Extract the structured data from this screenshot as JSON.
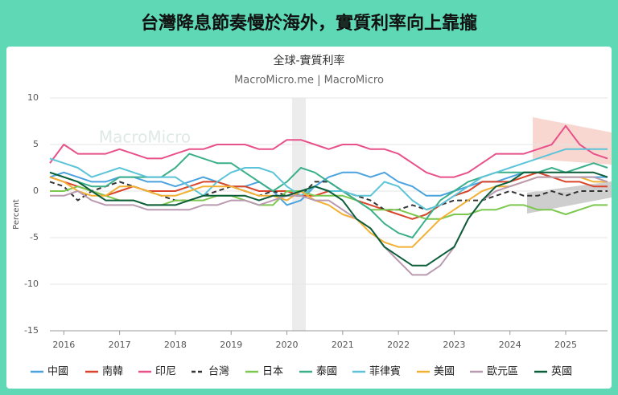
{
  "header": {
    "title": "台灣降息節奏慢於海外，實質利率向上靠攏"
  },
  "chart_data": {
    "type": "line",
    "title": "全球-實質利率",
    "subtitle": "MacroMicro.me | MacroMicro",
    "watermark": "MacroMicro",
    "y_label": "Percent",
    "x": [
      2015.75,
      2016,
      2016.25,
      2016.5,
      2016.75,
      2017,
      2017.25,
      2017.5,
      2017.75,
      2018,
      2018.25,
      2018.5,
      2018.75,
      2019,
      2019.25,
      2019.5,
      2019.75,
      2020,
      2020.25,
      2020.5,
      2020.75,
      2021,
      2021.25,
      2021.5,
      2021.75,
      2022,
      2022.25,
      2022.5,
      2022.75,
      2023,
      2023.25,
      2023.5,
      2023.75,
      2024,
      2024.25,
      2024.5,
      2024.75,
      2025,
      2025.25,
      2025.5,
      2025.75
    ],
    "xlim": [
      2015.75,
      2025.75
    ],
    "xticks": [
      2016,
      2017,
      2018,
      2019,
      2020,
      2021,
      2022,
      2023,
      2024,
      2025
    ],
    "ylim": [
      -15,
      10
    ],
    "yticks": [
      10,
      5,
      0,
      -5,
      -10,
      -15
    ],
    "grid": true,
    "series": [
      {
        "name": "中國",
        "color": "#4aa3df",
        "values": [
          1.5,
          2,
          1.5,
          1,
          1,
          1.5,
          1.5,
          1,
          1,
          0.5,
          1,
          1.5,
          1,
          0.5,
          0.5,
          1,
          0,
          -1.5,
          -1,
          0.5,
          1.5,
          2,
          2,
          1.5,
          2,
          1,
          0.5,
          -0.5,
          -0.5,
          0,
          0.5,
          1,
          1,
          1.5,
          2,
          2,
          1.5,
          1.5,
          1.5,
          1.5,
          1.5
        ]
      },
      {
        "name": "南韓",
        "color": "#d9442a",
        "values": [
          1.5,
          1,
          0.5,
          0,
          -0.5,
          0,
          0.5,
          0,
          0,
          0,
          0.5,
          1,
          1,
          0.5,
          0.5,
          0,
          0,
          0,
          -0.5,
          -0.5,
          0,
          0,
          -1,
          -1.5,
          -2,
          -2.5,
          -3,
          -2.5,
          -1.5,
          -0.5,
          0,
          1,
          1,
          1,
          1.5,
          2,
          1.5,
          1,
          1,
          0.5,
          0.5
        ]
      },
      {
        "name": "印尼",
        "color": "#e8508a",
        "values": [
          3,
          5,
          4,
          4,
          4,
          4.5,
          4,
          3.5,
          3.5,
          4,
          4.5,
          4.5,
          5,
          5,
          5,
          4.5,
          4.5,
          5.5,
          5.5,
          5,
          4.5,
          5,
          5,
          4.5,
          4.5,
          4,
          3,
          2,
          1.5,
          1.5,
          2,
          3,
          4,
          4,
          4,
          4.5,
          5,
          7,
          5,
          4,
          3.5
        ]
      },
      {
        "name": "台灣",
        "color": "#333333",
        "dashed": true,
        "values": [
          1,
          0.5,
          -1,
          0,
          0.5,
          1,
          0.5,
          0,
          -0.5,
          -1,
          -1,
          -0.5,
          0,
          0.5,
          0,
          -0.5,
          0,
          -0.5,
          -0.5,
          1,
          1,
          0,
          -0.5,
          -1,
          -2,
          -2,
          -1.5,
          -2,
          -1.5,
          -1,
          -1,
          -1,
          -0.5,
          0,
          -0.5,
          -0.5,
          0,
          -0.5,
          0,
          0,
          0
        ]
      },
      {
        "name": "日本",
        "color": "#7cc84f",
        "values": [
          0,
          0,
          0.5,
          0,
          -0.5,
          -1,
          -1,
          -1.5,
          -1.5,
          -1,
          -1,
          -1,
          -0.5,
          -0.5,
          -1,
          -1.5,
          -1.5,
          0,
          0,
          -0.5,
          -0.5,
          -0.5,
          -1,
          -2,
          -2,
          -2,
          -2.5,
          -3,
          -3,
          -2.5,
          -2.5,
          -2,
          -2,
          -1.5,
          -1.5,
          -2,
          -2,
          -2.5,
          -2,
          -1.5,
          -1.5
        ]
      },
      {
        "name": "泰國",
        "color": "#3aaf8a",
        "values": [
          2,
          1.5,
          1,
          0.5,
          0.5,
          1.5,
          1.5,
          1.5,
          1.5,
          2.5,
          4,
          3.5,
          3,
          3,
          2,
          1,
          0,
          1,
          2.5,
          2,
          1,
          0,
          -1,
          -2,
          -3.5,
          -4.5,
          -5,
          -3,
          -1,
          0,
          1,
          1.5,
          2,
          2,
          2,
          2,
          2.5,
          2,
          2.5,
          3,
          2.5
        ]
      },
      {
        "name": "菲律賓",
        "color": "#5bc4d8",
        "values": [
          3.5,
          3,
          2.5,
          1.5,
          2,
          2.5,
          2,
          1.5,
          1.5,
          1.5,
          0.5,
          -0.5,
          1,
          2,
          2.5,
          2.5,
          2,
          0.5,
          -0.5,
          0.5,
          0,
          0,
          -0.5,
          -0.5,
          1,
          0.5,
          -1,
          -2,
          -1.5,
          -0.5,
          0.5,
          1.5,
          2,
          2.5,
          3,
          3.5,
          4,
          4.5,
          4.5,
          4.5,
          4.5
        ]
      },
      {
        "name": "美國",
        "color": "#f2b134",
        "values": [
          1.5,
          1,
          0,
          -0.5,
          -0.5,
          0.5,
          0.5,
          0,
          -0.5,
          -0.5,
          0,
          0.5,
          0.5,
          0.5,
          0,
          -0.5,
          -0.5,
          -1,
          0,
          -1,
          -1.5,
          -2.5,
          -3,
          -4.5,
          -5.5,
          -6,
          -6,
          -4.5,
          -3,
          -2,
          -1,
          0,
          0.5,
          0.5,
          1,
          1.5,
          1.5,
          1.5,
          1.5,
          1,
          1
        ]
      },
      {
        "name": "歐元區",
        "color": "#b99ab0",
        "values": [
          -0.5,
          -0.5,
          0,
          -1,
          -1.5,
          -1.5,
          -1.5,
          -2,
          -2,
          -2,
          -2,
          -1.5,
          -1.5,
          -1,
          -1,
          -1.5,
          -1,
          -0.5,
          -0.5,
          -1,
          -1,
          -2,
          -3,
          -4,
          -6,
          -7.5,
          -9,
          -9,
          -8,
          -6,
          -3,
          -1,
          0,
          0.5,
          1,
          1.5,
          1.5,
          1.5,
          1.5,
          1.5,
          1
        ]
      },
      {
        "name": "英國",
        "color": "#0c5e3a",
        "values": [
          2,
          1.5,
          1,
          0,
          -1,
          -1,
          -1,
          -1.5,
          -1.5,
          -1.5,
          -1,
          -0.5,
          -0.5,
          -0.5,
          -0.5,
          -1,
          -0.5,
          -0.5,
          0,
          0.5,
          0,
          -1,
          -3,
          -4,
          -6,
          -7,
          -8,
          -8,
          -7,
          -6,
          -3,
          -1,
          0.5,
          1,
          2,
          2,
          2,
          2,
          2,
          2,
          1.5
        ]
      }
    ]
  }
}
